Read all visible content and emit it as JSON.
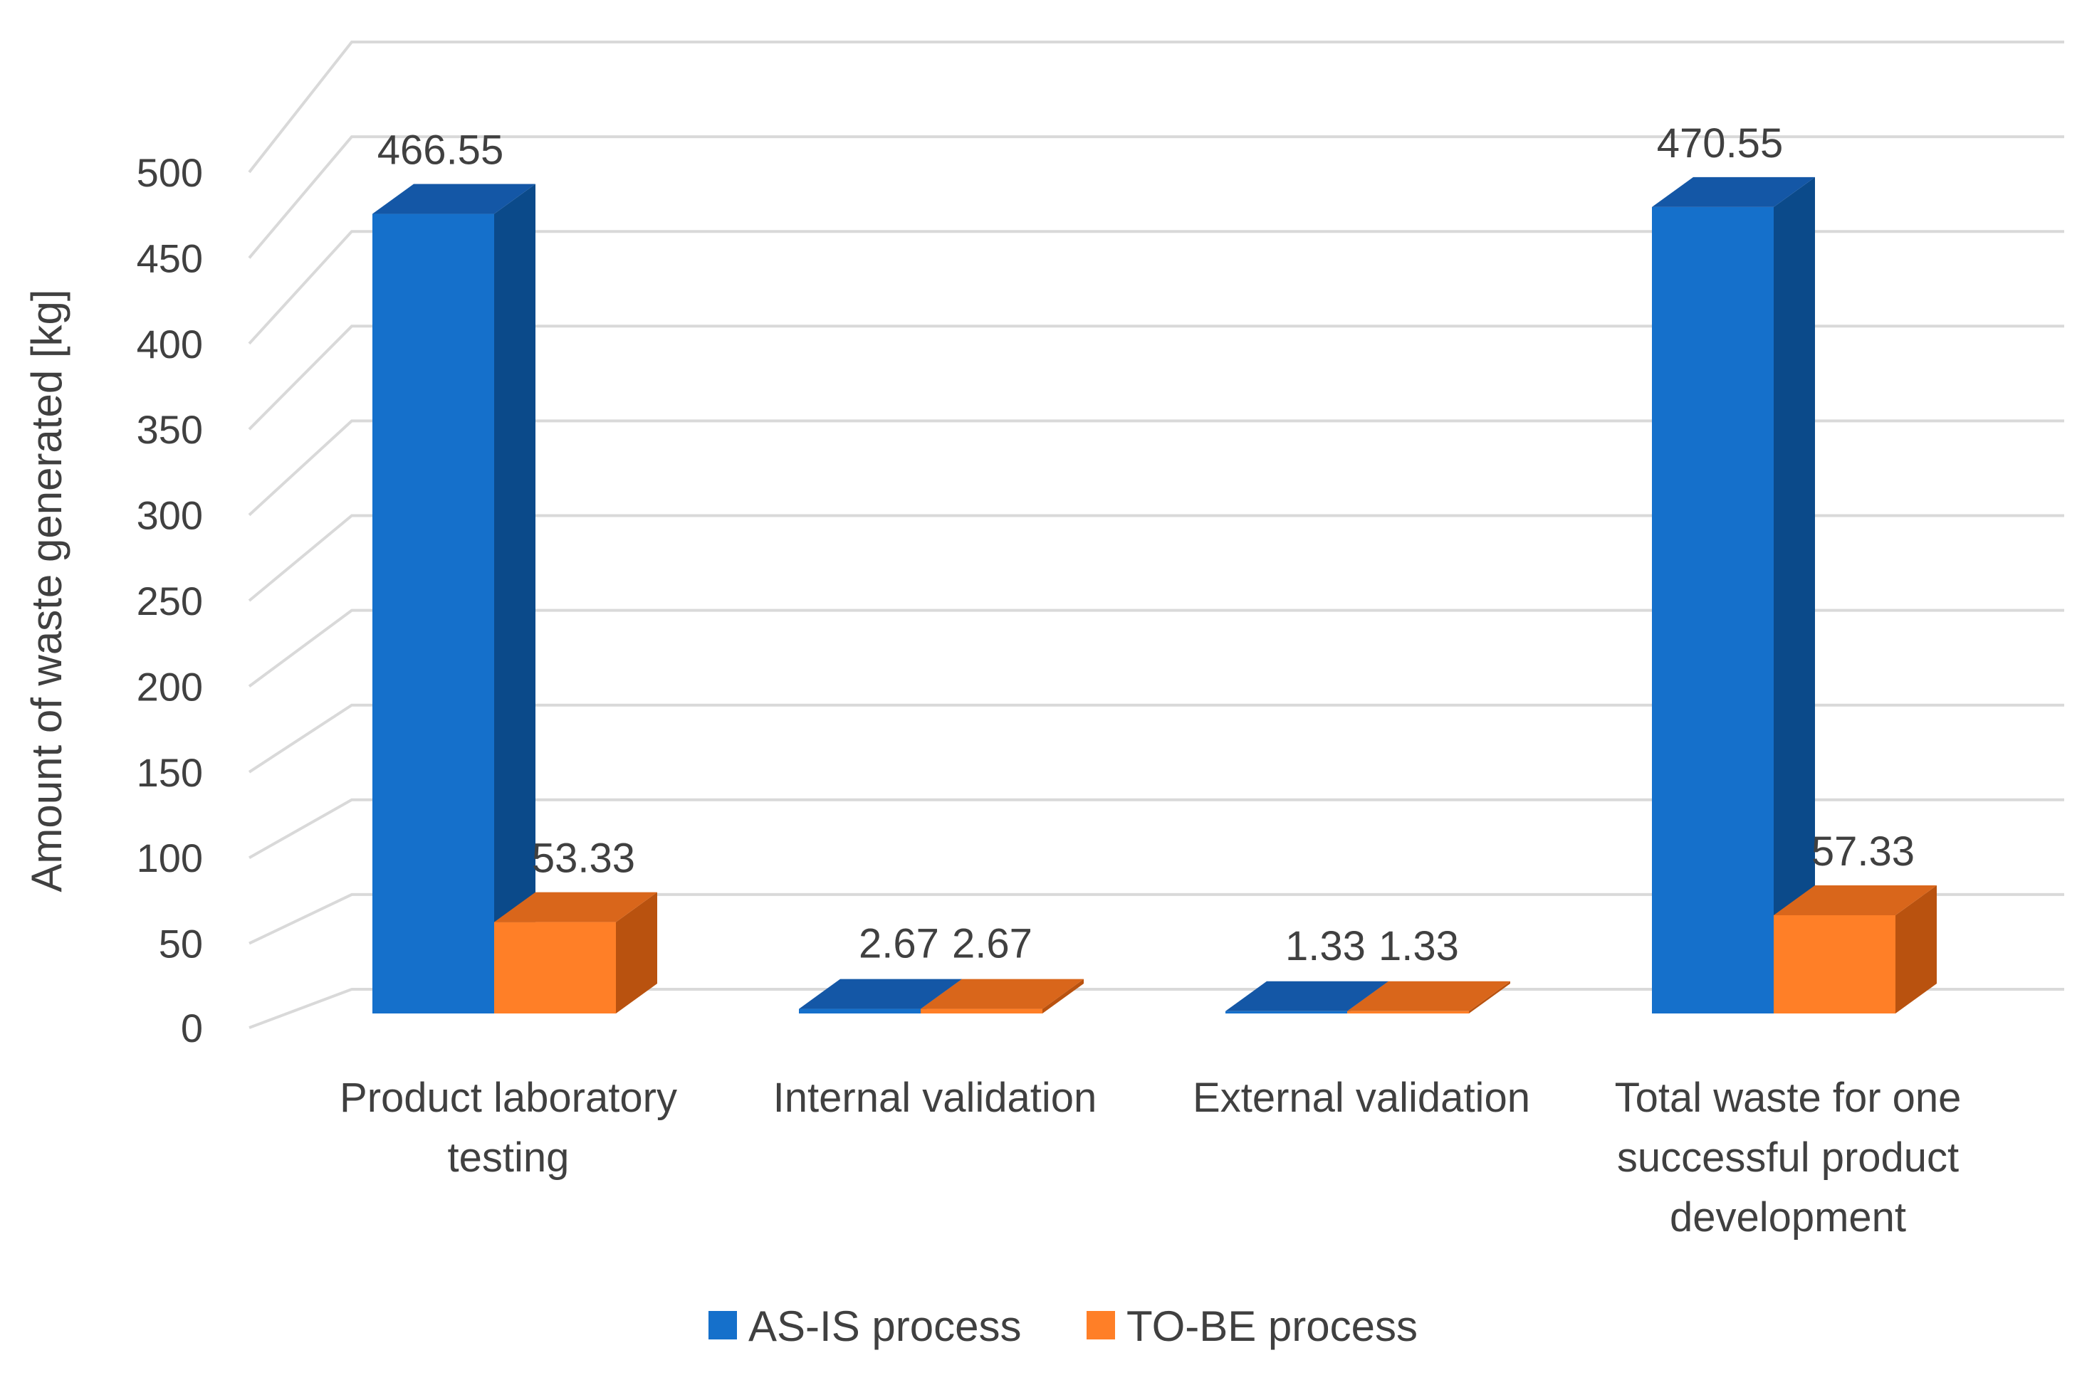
{
  "chart_data": {
    "type": "bar",
    "style": "3d-clustered-column",
    "title": "",
    "xlabel": "",
    "ylabel": "Amount of waste generated [kg]",
    "ylim": [
      0,
      500
    ],
    "yticks": [
      0,
      50,
      100,
      150,
      200,
      250,
      300,
      350,
      400,
      450,
      500
    ],
    "grid": true,
    "legend_position": "bottom",
    "categories": [
      [
        "Product laboratory",
        "testing"
      ],
      [
        "Internal validation"
      ],
      [
        "External validation"
      ],
      [
        "Total waste for one",
        "successful product",
        "development"
      ]
    ],
    "series": [
      {
        "name": "AS-IS process",
        "color": "#1570CB",
        "side_color": "#0B4A8A",
        "top_color": "#1457A6",
        "values": [
          466.55,
          2.67,
          1.33,
          470.55
        ],
        "labels": [
          "466.55",
          "2.67",
          "1.33",
          "470.55"
        ]
      },
      {
        "name": "TO-BE process",
        "color": "#FF7F27",
        "side_color": "#B9520F",
        "top_color": "#D9661B",
        "values": [
          53.33,
          2.67,
          1.33,
          57.33
        ],
        "labels": [
          "53.33",
          "2.67",
          "1.33",
          "57.33"
        ]
      }
    ]
  }
}
